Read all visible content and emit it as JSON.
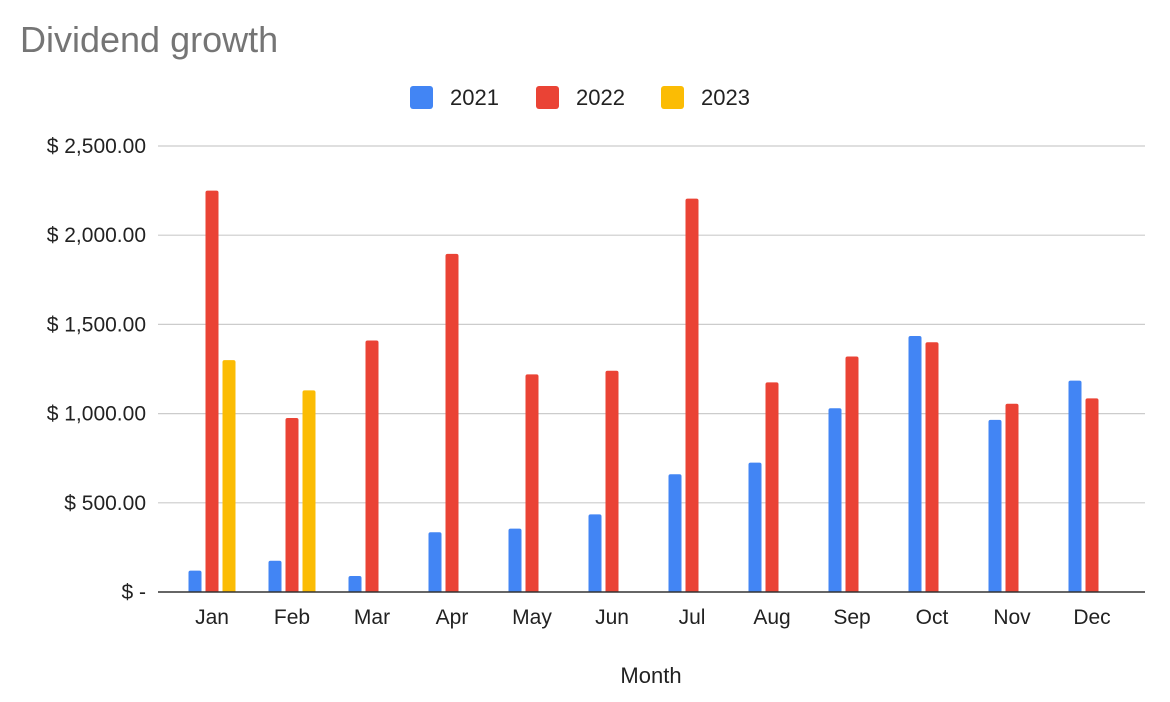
{
  "chart_data": {
    "type": "bar",
    "title": "Dividend growth",
    "xlabel": "Month",
    "ylabel": "",
    "categories": [
      "Jan",
      "Feb",
      "Mar",
      "Apr",
      "May",
      "Jun",
      "Jul",
      "Aug",
      "Sep",
      "Oct",
      "Nov",
      "Dec"
    ],
    "series": [
      {
        "name": "2021",
        "color": "#4285f4",
        "values": [
          120,
          175,
          90,
          335,
          355,
          435,
          660,
          725,
          1030,
          1435,
          965,
          1185
        ]
      },
      {
        "name": "2022",
        "color": "#ea4335",
        "values": [
          2250,
          975,
          1410,
          1895,
          1220,
          1240,
          2205,
          1175,
          1320,
          1400,
          1055,
          1085
        ]
      },
      {
        "name": "2023",
        "color": "#fbbc04",
        "values": [
          1300,
          1130,
          null,
          null,
          null,
          null,
          null,
          null,
          null,
          null,
          null,
          null
        ]
      }
    ],
    "ylim": [
      0,
      2500
    ],
    "yticks": [
      0,
      500,
      1000,
      1500,
      2000,
      2500
    ],
    "ytick_labels": [
      "$ -",
      "$ 500.00",
      "$ 1,000.00",
      "$ 1,500.00",
      "$ 2,000.00",
      "$ 2,500.00"
    ],
    "grid": true,
    "legend_position": "top-center"
  }
}
